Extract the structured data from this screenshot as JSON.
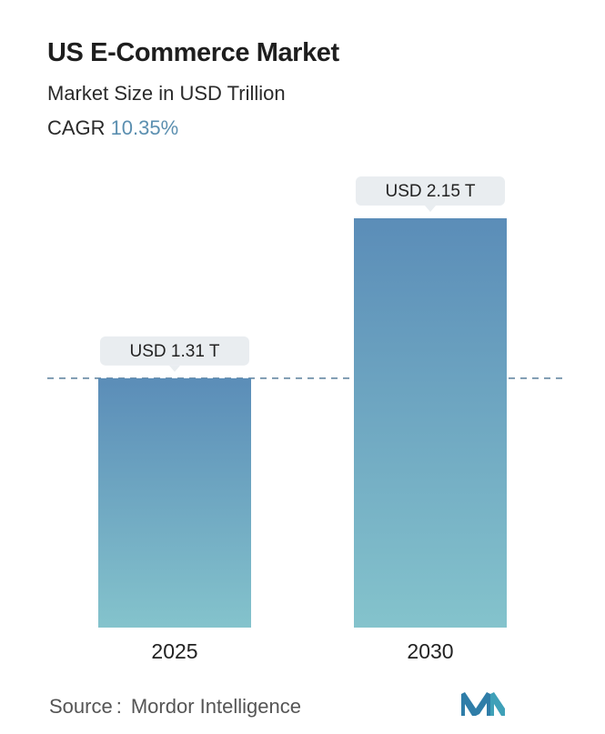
{
  "header": {
    "title": "US E-Commerce Market",
    "subtitle": "Market Size in USD Trillion",
    "cagr_label": "CAGR",
    "cagr_value": "10.35%"
  },
  "footer": {
    "source_label": "Source",
    "source_name": "Mordor Intelligence"
  },
  "colors": {
    "bar_top": "#5b8db8",
    "bar_bottom": "#84c3cc",
    "reference_line": "#5a7f9c",
    "callout_bg": "#e9edf0",
    "logo": "#2f7da8"
  },
  "icons": {
    "logo": "mordor-intelligence-logo-icon"
  },
  "chart_data": {
    "type": "bar",
    "title": "US E-Commerce Market",
    "ylabel": "Market Size in USD Trillion",
    "categories": [
      "2025",
      "2030"
    ],
    "values": [
      1.31,
      2.15
    ],
    "data_labels": [
      "USD 1.31 T",
      "USD 2.15 T"
    ],
    "ylim": [
      0,
      2.15
    ],
    "grid": false,
    "reference_line": 1.31,
    "legend": "none"
  }
}
